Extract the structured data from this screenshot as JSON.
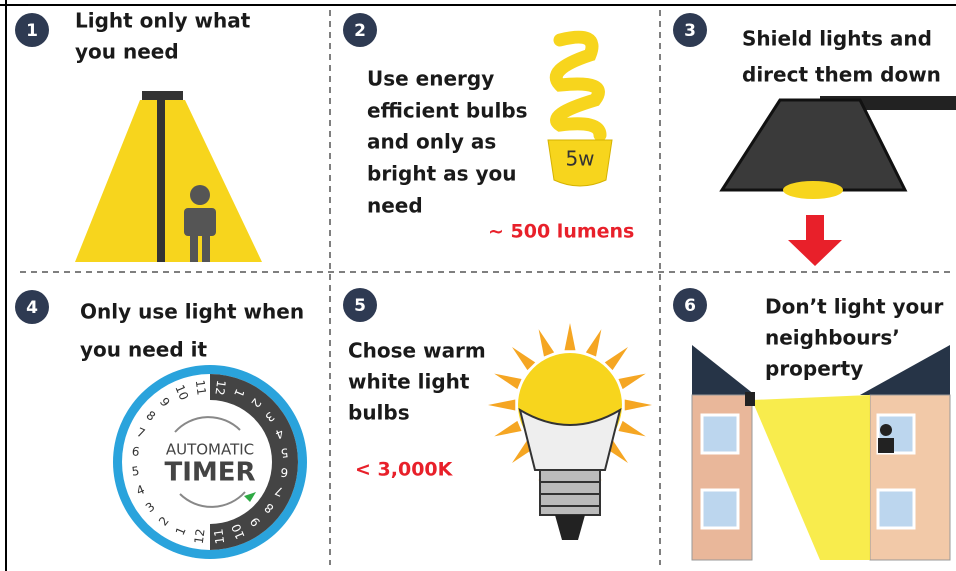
{
  "panels": [
    {
      "number": "1",
      "lines": [
        "Light only what",
        "you need"
      ]
    },
    {
      "number": "2",
      "lines": [
        "Use energy",
        "efficient bulbs",
        "and only as",
        "bright as you",
        "need"
      ],
      "bulb_label": "5w",
      "note": "~ 500 lumens"
    },
    {
      "number": "3",
      "lines": [
        "Shield lights and",
        "direct them down"
      ]
    },
    {
      "number": "4",
      "lines": [
        "Only use light when",
        "you need it"
      ],
      "timer_lines": [
        "AUTOMATIC",
        "TIMER"
      ],
      "dial": [
        "12",
        "1",
        "2",
        "3",
        "4",
        "5",
        "6",
        "7",
        "8",
        "9",
        "10",
        "11",
        "12",
        "1",
        "2",
        "3",
        "4",
        "5",
        "6",
        "7",
        "8",
        "9",
        "10",
        "11"
      ]
    },
    {
      "number": "5",
      "lines": [
        "Chose warm",
        "white light",
        "bulbs"
      ],
      "note": "< 3,000K"
    },
    {
      "number": "6",
      "lines": [
        "Don’t light your",
        "neighbours’",
        "property"
      ]
    }
  ]
}
